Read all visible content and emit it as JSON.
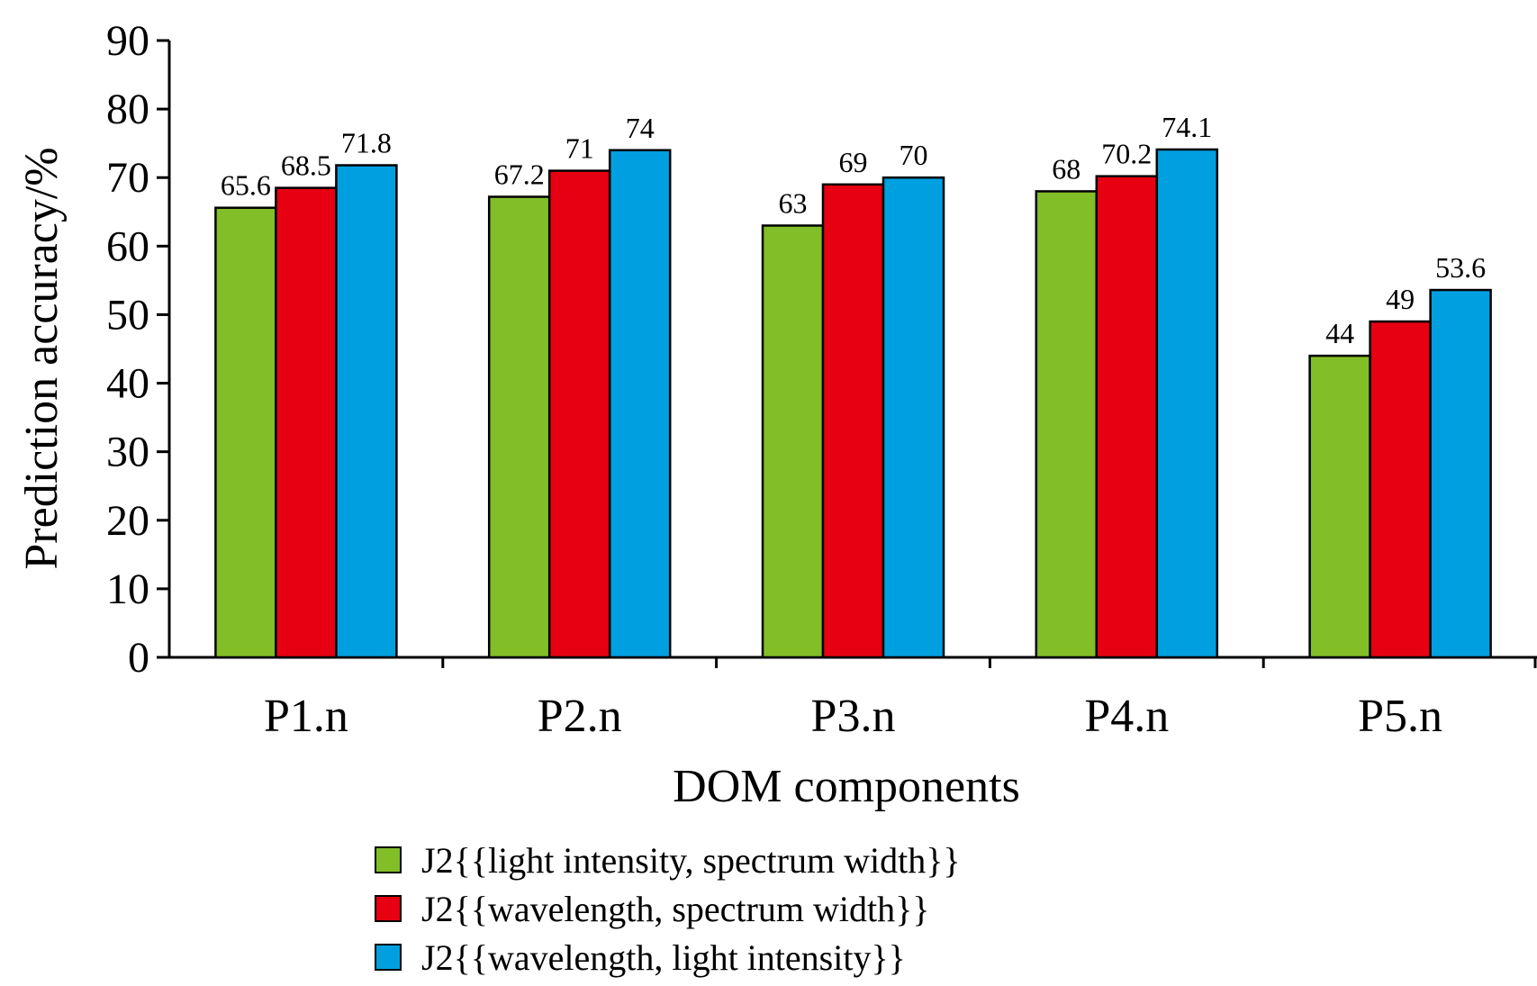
{
  "chart_data": {
    "type": "bar",
    "xlabel": "DOM components",
    "ylabel": "Prediction accuracy/%",
    "ylim": [
      0,
      90
    ],
    "yticks": [
      0,
      10,
      20,
      30,
      40,
      50,
      60,
      70,
      80,
      90
    ],
    "grid": false,
    "legend_position": "bottom",
    "categories": [
      "P1.n",
      "P2.n",
      "P3.n",
      "P4.n",
      "P5.n"
    ],
    "series": [
      {
        "name": "J2{{light intensity, spectrum width}}",
        "color": "#82be28",
        "values": [
          65.6,
          67.2,
          63,
          68,
          44
        ],
        "labels": [
          "65.6",
          "67.2",
          "63",
          "68",
          "44"
        ]
      },
      {
        "name": "J2{{wavelength, spectrum width}}",
        "color": "#e60012",
        "values": [
          68.5,
          71,
          69,
          70.2,
          49
        ],
        "labels": [
          "68.5",
          "71",
          "69",
          "70.2",
          "49"
        ]
      },
      {
        "name": "J2{{wavelength, light intensity}}",
        "color": "#00a0e0",
        "values": [
          71.8,
          74,
          70,
          74.1,
          53.6
        ],
        "labels": [
          "71.8",
          "74",
          "70",
          "74.1",
          "53.6"
        ]
      }
    ]
  }
}
